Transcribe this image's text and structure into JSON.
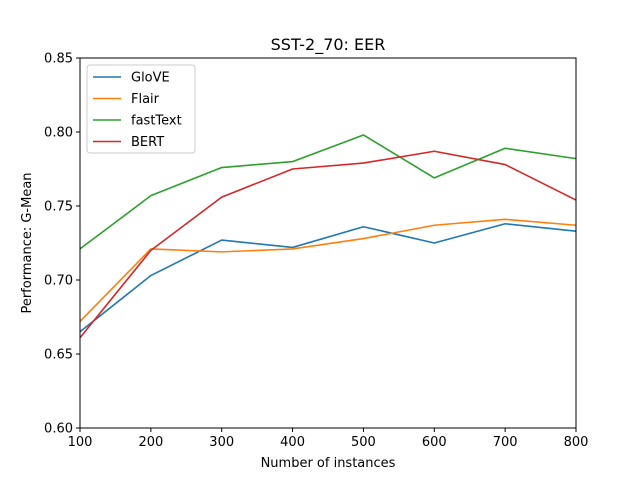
{
  "chart_data": {
    "type": "line",
    "title": "SST-2_70: EER",
    "xlabel": "Number of instances",
    "ylabel": "Performance: G-Mean",
    "x": [
      100,
      200,
      300,
      400,
      500,
      600,
      700,
      800
    ],
    "xlim": [
      100,
      800
    ],
    "ylim": [
      0.6,
      0.85
    ],
    "xticks": [
      "100",
      "200",
      "300",
      "400",
      "500",
      "600",
      "700",
      "800"
    ],
    "yticks": [
      "0.60",
      "0.65",
      "0.70",
      "0.75",
      "0.80",
      "0.85"
    ],
    "grid": false,
    "legend_position": "top-left",
    "series": [
      {
        "name": "GloVE",
        "color": "#1f77b4",
        "values": [
          0.665,
          0.703,
          0.727,
          0.722,
          0.736,
          0.725,
          0.738,
          0.733
        ]
      },
      {
        "name": "Flair",
        "color": "#ff7f0e",
        "values": [
          0.672,
          0.721,
          0.719,
          0.721,
          0.728,
          0.737,
          0.741,
          0.737
        ]
      },
      {
        "name": "fastText",
        "color": "#2ca02c",
        "values": [
          0.721,
          0.757,
          0.776,
          0.78,
          0.798,
          0.769,
          0.789,
          0.782
        ]
      },
      {
        "name": "BERT",
        "color": "#d62728",
        "values": [
          0.661,
          0.72,
          0.756,
          0.775,
          0.779,
          0.787,
          0.778,
          0.754
        ]
      }
    ]
  }
}
